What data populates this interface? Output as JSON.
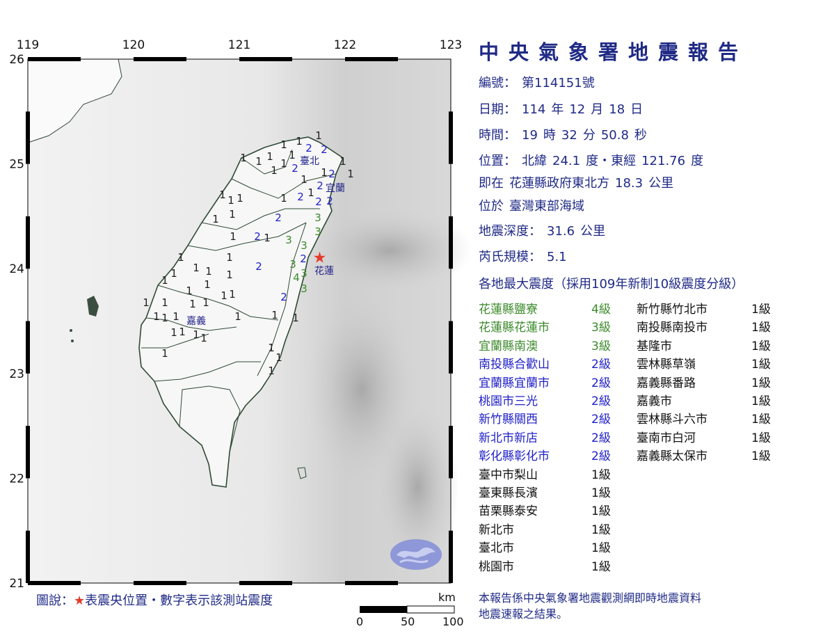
{
  "report": {
    "title": "中央氣象署地震報告",
    "number_label": "編號：",
    "number": "第114151號",
    "date_label": "日期：",
    "date": [
      "114",
      "年",
      "12",
      "月",
      "18",
      "日"
    ],
    "time_label": "時間：",
    "time": [
      "19",
      "時",
      "32",
      "分",
      "50.8",
      "秒"
    ],
    "position_label": "位置：",
    "position": [
      "北緯",
      "24.1",
      "度・東經",
      "121.76",
      "度"
    ],
    "relative_label": "即在",
    "relative": [
      "花蓮縣政府東北方",
      "18.3",
      "公里"
    ],
    "region_label": "位於",
    "region": "臺灣東部海域",
    "depth_label": "地震深度：",
    "depth": [
      "31.6",
      "公里"
    ],
    "magnitude_label": "芮氏規模：",
    "magnitude": "5.1",
    "intensity_heading": "各地最大震度（採用109年新制10級震度分級）"
  },
  "intensity_list": {
    "left": [
      {
        "place": "花蓮縣鹽寮",
        "level": "4級",
        "intensity": 4
      },
      {
        "place": "花蓮縣花蓮市",
        "level": "3級",
        "intensity": 3
      },
      {
        "place": "宜蘭縣南澳",
        "level": "3級",
        "intensity": 3
      },
      {
        "place": "南投縣合歡山",
        "level": "2級",
        "intensity": 2
      },
      {
        "place": "宜蘭縣宜蘭市",
        "level": "2級",
        "intensity": 2
      },
      {
        "place": "桃園市三光",
        "level": "2級",
        "intensity": 2
      },
      {
        "place": "新竹縣關西",
        "level": "2級",
        "intensity": 2
      },
      {
        "place": "新北市新店",
        "level": "2級",
        "intensity": 2
      },
      {
        "place": "彰化縣彰化市",
        "level": "2級",
        "intensity": 2
      },
      {
        "place": "臺中市梨山",
        "level": "1級",
        "intensity": 1
      },
      {
        "place": "臺東縣長濱",
        "level": "1級",
        "intensity": 1
      },
      {
        "place": "苗栗縣泰安",
        "level": "1級",
        "intensity": 1
      },
      {
        "place": "新北市",
        "level": "1級",
        "intensity": 1
      },
      {
        "place": "臺北市",
        "level": "1級",
        "intensity": 1
      },
      {
        "place": "桃園市",
        "level": "1級",
        "intensity": 1
      }
    ],
    "right": [
      {
        "place": "新竹縣竹北市",
        "level": "1級",
        "intensity": 1
      },
      {
        "place": "南投縣南投市",
        "level": "1級",
        "intensity": 1
      },
      {
        "place": "基隆市",
        "level": "1級",
        "intensity": 1
      },
      {
        "place": "雲林縣草嶺",
        "level": "1級",
        "intensity": 1
      },
      {
        "place": "嘉義縣番路",
        "level": "1級",
        "intensity": 1
      },
      {
        "place": "嘉義市",
        "level": "1級",
        "intensity": 1
      },
      {
        "place": "雲林縣斗六市",
        "level": "1級",
        "intensity": 1
      },
      {
        "place": "臺南市白河",
        "level": "1級",
        "intensity": 1
      },
      {
        "place": "嘉義縣太保市",
        "level": "1級",
        "intensity": 1
      }
    ]
  },
  "map": {
    "lon_ticks": [
      "119",
      "120",
      "121",
      "122",
      "123"
    ],
    "lat_ticks": [
      "26",
      "25",
      "24",
      "23",
      "22",
      "21"
    ],
    "epicenter": {
      "lat": 24.1,
      "lon": 121.76,
      "color": "#e53b2c",
      "icon": "star-icon"
    },
    "city_labels": [
      "臺北",
      "宜蘭",
      "花蓮",
      "嘉義"
    ],
    "station_intensities": [
      "1",
      "1",
      "1",
      "1",
      "1",
      "2",
      "2",
      "1",
      "1",
      "1",
      "1",
      "2",
      "1",
      "1",
      "2",
      "2",
      "1",
      "1",
      "1",
      "2",
      "2",
      "2",
      "1",
      "1",
      "1",
      "2",
      "1",
      "1",
      "3",
      "3",
      "1",
      "1",
      "2",
      "3",
      "3",
      "2",
      "1",
      "2",
      "1",
      "1",
      "1",
      "3",
      "3",
      "4",
      "1",
      "3",
      "1",
      "2",
      "1",
      "1",
      "1",
      "1",
      "1",
      "1",
      "1",
      "1",
      "1",
      "1",
      "1",
      "1",
      "1",
      "1",
      "1",
      "1",
      "1",
      "1",
      "1",
      "1",
      "1",
      "1",
      "1",
      "1"
    ],
    "logo": "cwa-logo",
    "scale": {
      "unit": "km",
      "labels": [
        "0",
        "50",
        "100"
      ]
    }
  },
  "legend": {
    "prefix": "圖說：",
    "star": "★",
    "text": "表震央位置・數字表示該測站震度"
  },
  "footnote": [
    "本報告係中央氣象署地震觀測網即時地震資料",
    "地震速報之結果。"
  ],
  "colors": {
    "text": "#1f2a86",
    "intensity_4": "#3b8a2a",
    "intensity_3": "#3b8a2a",
    "intensity_2": "#2020c8",
    "intensity_1": "#111111"
  }
}
